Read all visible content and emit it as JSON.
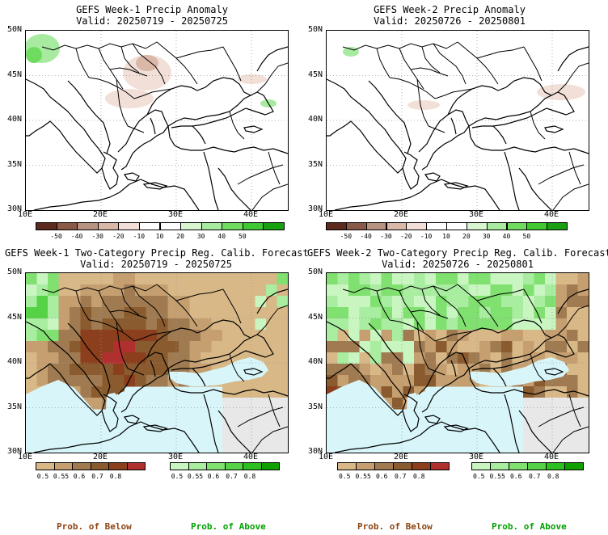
{
  "panels": [
    {
      "title": "GEFS Week-1 Precip Anomaly",
      "valid": "Valid: 20250719 - 20250725"
    },
    {
      "title": "GEFS Week-2 Precip Anomaly",
      "valid": "Valid: 20250726 - 20250801"
    },
    {
      "title": "GEFS Week-1 Two-Category Precip Reg. Calib. Forecast",
      "valid": "Valid: 20250719 - 20250725"
    },
    {
      "title": "GEFS Week-2 Two-Category Precip Reg. Calib. Forecast",
      "valid": "Valid: 20250726 - 20250801"
    }
  ],
  "lat_labels": [
    "50N",
    "45N",
    "40N",
    "35N",
    "30N"
  ],
  "lon_labels": [
    "10E",
    "20E",
    "30E",
    "40E"
  ],
  "anomaly_colorbar": {
    "ticks": [
      "-50",
      "-40",
      "-30",
      "-20",
      "-10",
      "10",
      "20",
      "30",
      "40",
      "50"
    ],
    "colors": [
      "#5c2a1e",
      "#8a5a48",
      "#b89282",
      "#d9b8a8",
      "#f2e0d8",
      "#ffffff",
      "#ffffff",
      "#d8f5d0",
      "#a8eba0",
      "#6fdc60",
      "#3fc832",
      "#18a010"
    ]
  },
  "below_colorbar": {
    "ticks": [
      "0.5",
      "0.55",
      "0.6",
      "0.7",
      "0.8"
    ],
    "colors": [
      "#d9b887",
      "#c59f70",
      "#a07a50",
      "#8a5b2e",
      "#8b3f1c",
      "#b03030"
    ]
  },
  "above_colorbar": {
    "ticks": [
      "0.5",
      "0.55",
      "0.6",
      "0.7",
      "0.8"
    ],
    "colors": [
      "#c8f5c0",
      "#a8eda0",
      "#80e070",
      "#55d245",
      "#2ec020",
      "#10a000"
    ]
  },
  "legend": {
    "below": "Prob. of Below",
    "above": "Prob. of Above"
  },
  "colors": {
    "sea": "#d8f6fa",
    "land_gray": "#e8e8e8",
    "below_label": "#8b4513",
    "above_label": "#00a000"
  }
}
